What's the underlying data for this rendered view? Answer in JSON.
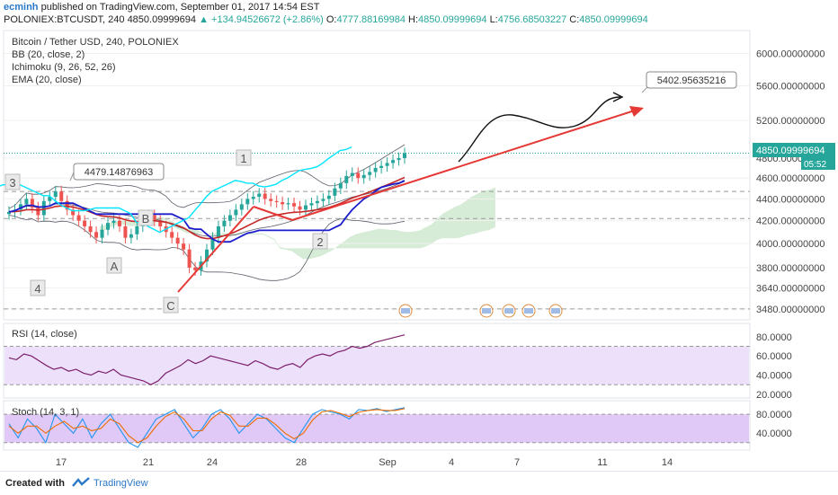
{
  "header": {
    "author": "ecminh",
    "published": "published on TradingView.com, September 01, 2017 14:54 EST",
    "symbol_info": "POLONIEX:BTCUSDT, 240",
    "last": "4850.09999694",
    "change": "▲ +134.94526672 (+2.86%)",
    "o_label": "O:",
    "o_value": "4777.88169984",
    "h_label": "H:",
    "h_value": "4850.09999694",
    "l_label": "L:",
    "l_value": "4756.68503227",
    "c_label": "C:",
    "c_value": "4850.09999694"
  },
  "legend": {
    "title": "Bitcoin / Tether USD, 240, POLONIEX",
    "bb": "BB (20, close, 2)",
    "ichimoku": "Ichimoku (9, 26, 52, 26)",
    "ema": "EMA (20, close)"
  },
  "rsi_label": "RSI (14, close)",
  "stoch_label": "Stoch (14, 3, 1)",
  "footer": {
    "created": "Created with",
    "brand": "TradingView"
  },
  "colors": {
    "up": "#26a69a",
    "down": "#ef5350",
    "bb": "#5d606b",
    "tenkan": "#00e5ff",
    "kijun": "#1c1ccc",
    "ema": "#c62828",
    "cloud_green": "#c8e6c9",
    "cloud_red": "#ffcdd2",
    "rsi": "#7b1f6a",
    "rsi_band": "#ede0fa",
    "stoch_band": "#e0c8f7",
    "stoch_k": "#2196f3",
    "stoch_d": "#ef6c00",
    "annotation": "#e53935"
  },
  "chart_data": [
    {
      "type": "candlestick",
      "title": "Bitcoin / Tether USD, 240, POLONIEX",
      "x_ticks": [
        "17",
        "21",
        "24",
        "28",
        "Sep",
        "4",
        "7",
        "11",
        "14"
      ],
      "y_ticks": [
        "6000.00000000",
        "5600.00000000",
        "5200.00000000",
        "4800.00000000",
        "4600.00000000",
        "4400.00000000",
        "4200.00000000",
        "4000.00000000",
        "3800.00000000",
        "3640.00000000",
        "3480.00000000"
      ],
      "y_scale": "log",
      "ylim": [
        3400,
        6300
      ],
      "last_price": "4850.09999694",
      "countdown": "05:52",
      "close_series": [
        4280,
        4300,
        4350,
        4400,
        4320,
        4250,
        4380,
        4420,
        4470,
        4380,
        4300,
        4250,
        4200,
        4150,
        4100,
        4050,
        4120,
        4180,
        4200,
        4150,
        4050,
        4080,
        4150,
        4220,
        4250,
        4200,
        4150,
        4100,
        4050,
        4000,
        3950,
        3800,
        3780,
        3850,
        3950,
        4050,
        4150,
        4200,
        4250,
        4300,
        4350,
        4400,
        4420,
        4450,
        4400,
        4380,
        4370,
        4350,
        4360,
        4330,
        4300,
        4340,
        4360,
        4380,
        4400,
        4430,
        4500,
        4550,
        4620,
        4650,
        4600,
        4630,
        4660,
        4700,
        4720,
        4750,
        4780,
        4800,
        4850
      ],
      "annotations": [
        {
          "text": "4479.14876963"
        },
        {
          "text": "5402.95635216"
        },
        {
          "text": "1"
        },
        {
          "text": "2"
        },
        {
          "text": "3"
        },
        {
          "text": "4"
        },
        {
          "text": "A"
        },
        {
          "text": "B"
        },
        {
          "text": "C"
        }
      ]
    },
    {
      "type": "line",
      "title": "RSI (14, close)",
      "y_ticks": [
        "80.0000",
        "60.0000",
        "40.0000",
        "20.0000"
      ],
      "ylim": [
        18,
        92
      ],
      "values": [
        58,
        56,
        62,
        60,
        55,
        50,
        46,
        48,
        44,
        46,
        42,
        40,
        44,
        42,
        46,
        40,
        38,
        36,
        34,
        30,
        34,
        42,
        46,
        50,
        56,
        52,
        55,
        60,
        58,
        56,
        54,
        52,
        50,
        55,
        52,
        48,
        46,
        50,
        52,
        48,
        56,
        60,
        62,
        60,
        64,
        66,
        70,
        68,
        70,
        74,
        76,
        78,
        80,
        82
      ]
    },
    {
      "type": "line",
      "title": "Stoch (14, 3, 1)",
      "y_ticks": [
        "80.0000",
        "40.0000"
      ],
      "ylim": [
        8,
        105
      ],
      "series": [
        {
          "values": [
            60,
            30,
            70,
            50,
            20,
            80,
            60,
            40,
            70,
            30,
            60,
            80,
            50,
            20,
            10,
            40,
            70,
            80,
            90,
            60,
            30,
            50,
            80,
            90,
            70,
            40,
            60,
            80,
            70,
            50,
            30,
            20,
            50,
            80,
            90,
            85,
            80,
            70,
            90,
            88,
            92,
            86,
            90,
            94
          ]
        },
        {
          "values": [
            55,
            40,
            55,
            55,
            40,
            55,
            65,
            50,
            55,
            45,
            50,
            70,
            60,
            35,
            20,
            30,
            55,
            75,
            85,
            70,
            45,
            45,
            70,
            85,
            78,
            55,
            55,
            72,
            72,
            58,
            40,
            28,
            40,
            68,
            85,
            88,
            82,
            75,
            84,
            88,
            90,
            88,
            88,
            92
          ]
        }
      ]
    }
  ]
}
